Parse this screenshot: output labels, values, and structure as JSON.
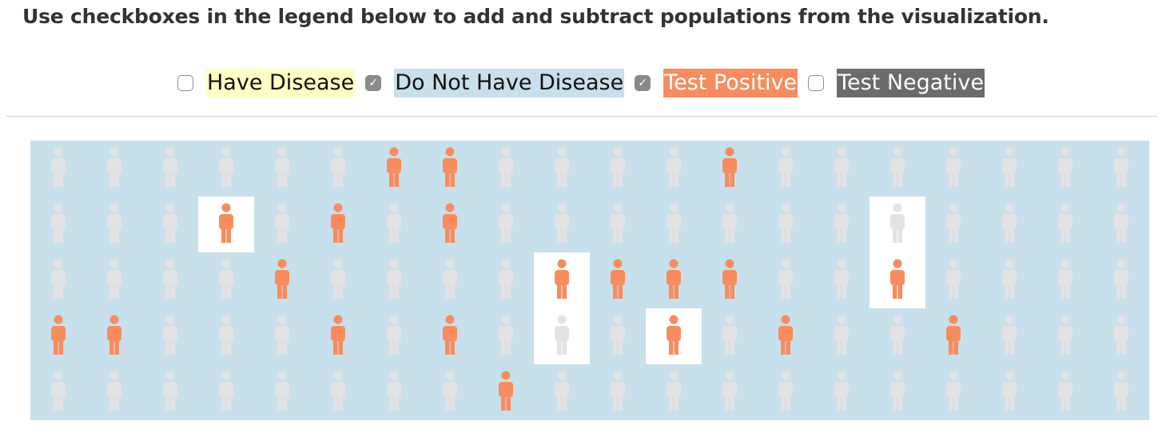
{
  "instructions": "Use checkboxes in the legend below to add and subtract populations from the visualization.",
  "legend": [
    {
      "label": "Have Disease",
      "checked": false,
      "bg": "#ffffc4",
      "fg": "#111111"
    },
    {
      "label": "Do Not Have Disease",
      "checked": true,
      "bg": "#c8dfec",
      "fg": "#111111"
    },
    {
      "label": "Test Positive",
      "checked": true,
      "bg": "#f78c5f",
      "fg": "#ffffff"
    },
    {
      "label": "Test Negative",
      "checked": false,
      "bg": "#6b6b6b",
      "fg": "#ffffff"
    }
  ],
  "colors": {
    "no_disease_bg": "#c8dfec",
    "have_disease_bg": "#ffffff",
    "test_positive": "#f78c5f",
    "test_negative": "#e3e3e3"
  },
  "grid": {
    "columns": 20,
    "rows": 5,
    "positive": [
      [
        0,
        6
      ],
      [
        0,
        7
      ],
      [
        0,
        12
      ],
      [
        1,
        3
      ],
      [
        1,
        5
      ],
      [
        1,
        7
      ],
      [
        2,
        4
      ],
      [
        2,
        9
      ],
      [
        2,
        10
      ],
      [
        2,
        11
      ],
      [
        2,
        12
      ],
      [
        2,
        15
      ],
      [
        3,
        0
      ],
      [
        3,
        1
      ],
      [
        3,
        5
      ],
      [
        3,
        7
      ],
      [
        3,
        11
      ],
      [
        3,
        13
      ],
      [
        3,
        16
      ],
      [
        4,
        8
      ]
    ],
    "have_disease": [
      [
        1,
        3
      ],
      [
        1,
        15
      ],
      [
        2,
        9
      ],
      [
        2,
        15
      ],
      [
        3,
        9
      ],
      [
        3,
        11
      ]
    ]
  }
}
